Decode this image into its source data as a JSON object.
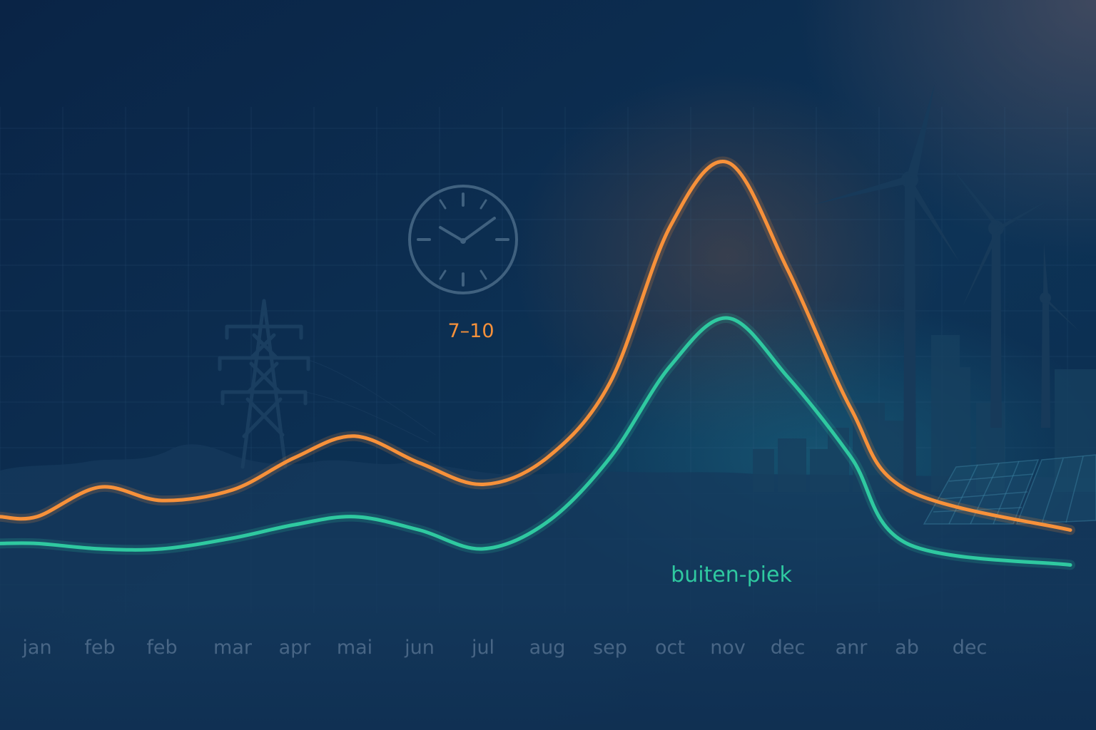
{
  "colors": {
    "background_top": "#0d2a4c",
    "background_bottom": "#0a2446",
    "peak_series": "#f7913a",
    "offpeak_series": "#2fc9a0",
    "tick_label": "#52708f",
    "silhouette": "#153a5c"
  },
  "annotations": {
    "peak_hours": "7–10",
    "offpeak_label": "buiten-piek"
  },
  "icons": [
    "clock-icon",
    "power-pylon-icon",
    "wind-turbine-icon",
    "solar-panel-icon",
    "city-skyline-icon"
  ],
  "chart_data": {
    "type": "line",
    "title": "",
    "xlabel": "",
    "ylabel": "",
    "categories": [
      "jan",
      "feb",
      "feb",
      "mar",
      "apr",
      "mai",
      "jun",
      "jul",
      "aug",
      "sep",
      "oct",
      "nov",
      "dec",
      "anr",
      "ab",
      "dec"
    ],
    "grid": true,
    "legend": "none",
    "series": [
      {
        "key": "peak",
        "color": "#f7913a",
        "values": [
          20,
          31,
          26,
          30,
          42,
          50,
          40,
          32,
          42,
          70,
          128,
          152,
          112,
          60,
          30,
          15
        ]
      },
      {
        "key": "offpeak",
        "color": "#2fc9a0",
        "values": [
          10,
          8,
          8,
          12,
          17,
          20,
          15,
          8,
          18,
          42,
          76,
          94,
          72,
          42,
          10,
          2
        ]
      }
    ],
    "ylim": [
      0,
      170
    ]
  }
}
